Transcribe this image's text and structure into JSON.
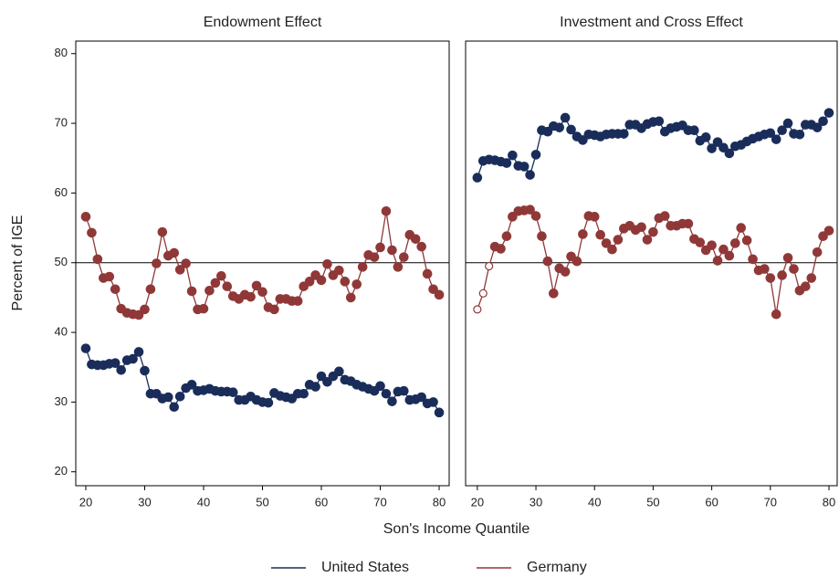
{
  "chart_data": [
    {
      "type": "line",
      "title": "Endowment Effect",
      "ylabel": "Percent of IGE",
      "xlabel": "Son's Income Quantile",
      "x": [
        20,
        21,
        22,
        23,
        24,
        25,
        26,
        27,
        28,
        29,
        30,
        31,
        32,
        33,
        34,
        35,
        36,
        37,
        38,
        39,
        40,
        41,
        42,
        43,
        44,
        45,
        46,
        47,
        48,
        49,
        50,
        51,
        52,
        53,
        54,
        55,
        56,
        57,
        58,
        59,
        60,
        61,
        62,
        63,
        64,
        65,
        66,
        67,
        68,
        69,
        70,
        71,
        72,
        73,
        74,
        75,
        76,
        77,
        78,
        79,
        80
      ],
      "series": [
        {
          "name": "United States",
          "color": "#1a2d5a",
          "values": [
            37.7,
            35.4,
            35.3,
            35.3,
            35.5,
            35.6,
            34.6,
            36.0,
            36.2,
            37.2,
            34.5,
            31.2,
            31.2,
            30.5,
            30.7,
            29.3,
            30.8,
            32.0,
            32.5,
            31.6,
            31.7,
            31.9,
            31.6,
            31.5,
            31.5,
            31.4,
            30.3,
            30.3,
            30.8,
            30.3,
            30.0,
            29.9,
            31.3,
            30.9,
            30.7,
            30.5,
            31.2,
            31.2,
            32.5,
            32.2,
            33.7,
            32.9,
            33.7,
            34.4,
            33.2,
            33.0,
            32.5,
            32.2,
            31.9,
            31.6,
            32.3,
            31.2,
            30.1,
            31.5,
            31.6,
            30.3,
            30.4,
            30.7,
            29.8,
            30.0,
            28.5
          ]
        },
        {
          "name": "Germany",
          "color": "#903838",
          "values": [
            56.6,
            54.3,
            50.5,
            47.8,
            48.0,
            46.2,
            43.4,
            42.8,
            42.6,
            42.5,
            43.3,
            46.2,
            49.9,
            54.4,
            51.0,
            51.4,
            49.0,
            49.9,
            45.9,
            43.3,
            43.4,
            46.0,
            47.1,
            48.1,
            46.6,
            45.2,
            44.8,
            45.4,
            45.1,
            46.7,
            45.8,
            43.6,
            43.3,
            44.8,
            44.8,
            44.5,
            44.5,
            46.6,
            47.3,
            48.2,
            47.5,
            49.8,
            48.2,
            48.9,
            47.3,
            45.0,
            46.9,
            49.4,
            51.1,
            50.8,
            52.2,
            57.4,
            51.8,
            49.4,
            50.8,
            54.0,
            53.4,
            52.3,
            48.4,
            46.2,
            45.4
          ]
        }
      ],
      "hline": 50,
      "xlim": [
        18.3,
        81.7
      ],
      "ylim": [
        18,
        81.8
      ],
      "xticks": [
        20,
        30,
        40,
        50,
        60,
        70,
        80
      ],
      "yticks": [
        20,
        30,
        40,
        50,
        60,
        70,
        80
      ]
    },
    {
      "type": "line",
      "title": "Investment and Cross Effect",
      "x": [
        20,
        21,
        22,
        23,
        24,
        25,
        26,
        27,
        28,
        29,
        30,
        31,
        32,
        33,
        34,
        35,
        36,
        37,
        38,
        39,
        40,
        41,
        42,
        43,
        44,
        45,
        46,
        47,
        48,
        49,
        50,
        51,
        52,
        53,
        54,
        55,
        56,
        57,
        58,
        59,
        60,
        61,
        62,
        63,
        64,
        65,
        66,
        67,
        68,
        69,
        70,
        71,
        72,
        73,
        74,
        75,
        76,
        77,
        78,
        79,
        80
      ],
      "series": [
        {
          "name": "United States",
          "color": "#1a2d5a",
          "values": [
            62.2,
            64.6,
            64.8,
            64.7,
            64.5,
            64.3,
            65.4,
            63.9,
            63.8,
            62.6,
            65.5,
            69.0,
            68.8,
            69.6,
            69.4,
            70.8,
            69.1,
            68.1,
            67.6,
            68.4,
            68.3,
            68.1,
            68.4,
            68.5,
            68.5,
            68.5,
            69.8,
            69.8,
            69.3,
            69.9,
            70.2,
            70.3,
            68.8,
            69.3,
            69.5,
            69.7,
            69.0,
            69.0,
            67.5,
            68.0,
            66.4,
            67.3,
            66.5,
            65.7,
            66.7,
            66.9,
            67.4,
            67.8,
            68.1,
            68.4,
            68.6,
            67.7,
            69.0,
            70.0,
            68.5,
            68.4,
            69.8,
            69.8,
            69.4,
            70.3,
            71.5
          ]
        },
        {
          "name": "Germany",
          "color": "#903838",
          "open_markers": [
            0,
            1,
            2
          ],
          "values": [
            43.3,
            45.6,
            49.5,
            52.3,
            52.0,
            53.8,
            56.6,
            57.4,
            57.5,
            57.6,
            56.7,
            53.8,
            50.2,
            45.6,
            49.2,
            48.7,
            50.9,
            50.2,
            54.1,
            56.7,
            56.6,
            54.0,
            52.8,
            51.9,
            53.3,
            54.9,
            55.3,
            54.7,
            55.1,
            53.3,
            54.4,
            56.4,
            56.7,
            55.3,
            55.3,
            55.6,
            55.6,
            53.4,
            52.9,
            51.8,
            52.5,
            50.3,
            51.9,
            51.0,
            52.8,
            55.0,
            53.2,
            50.5,
            48.9,
            49.1,
            47.8,
            42.6,
            48.2,
            50.7,
            49.1,
            46.0,
            46.6,
            47.8,
            51.5,
            53.8,
            54.6
          ]
        }
      ],
      "hline": 50,
      "xlim": [
        18,
        81.4
      ],
      "ylim": [
        18,
        81.8
      ],
      "xticks": [
        20,
        30,
        40,
        50,
        60,
        70,
        80
      ]
    }
  ]
}
